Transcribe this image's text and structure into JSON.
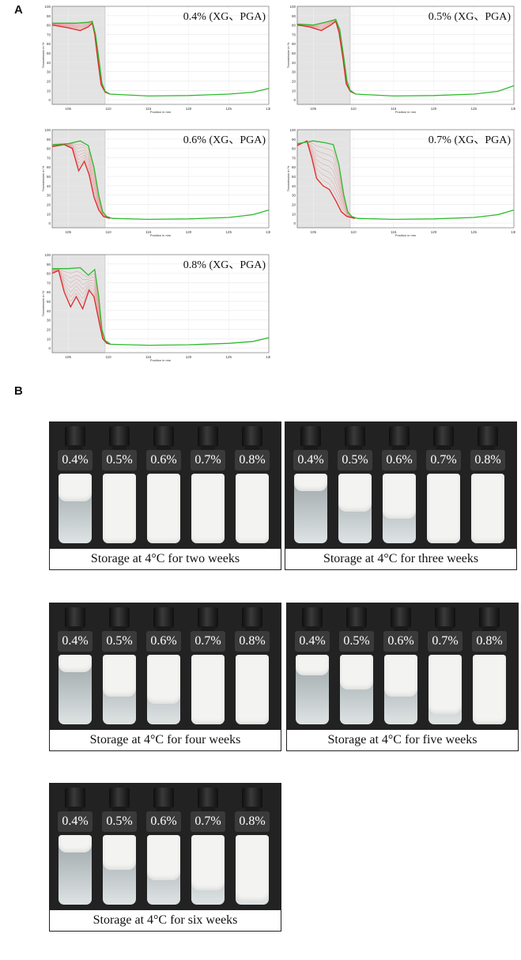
{
  "panel_a_label": "A",
  "panel_b_label": "B",
  "chart_data": [
    {
      "type": "line",
      "title": "0.4% (XG、PGA)",
      "xlabel": "Position in mm",
      "ylabel": "Transmission in %",
      "x_ticks": [
        "105",
        "110",
        "115",
        "120",
        "125",
        "130"
      ],
      "y_ticks": [
        "0",
        "10",
        "20",
        "30",
        "40",
        "50",
        "60",
        "70",
        "80",
        "90",
        "100"
      ],
      "xlim": [
        103,
        130
      ],
      "ylim": [
        -5,
        100
      ],
      "shaded_region": [
        103,
        109.6
      ],
      "series": [
        {
          "color": "#2dbb2d",
          "points": [
            [
              103,
              82
            ],
            [
              106,
              82
            ],
            [
              107.5,
              83
            ],
            [
              108,
              84
            ],
            [
              108.4,
              70
            ],
            [
              108.8,
              45
            ],
            [
              109.2,
              18
            ],
            [
              109.6,
              9
            ],
            [
              110.2,
              6
            ],
            [
              115,
              4
            ],
            [
              120,
              4.5
            ],
            [
              125,
              6
            ],
            [
              128,
              8
            ],
            [
              130,
              12
            ]
          ]
        },
        {
          "color": "#dd2a2a",
          "points": [
            [
              103,
              80
            ],
            [
              105,
              77
            ],
            [
              106.5,
              74
            ],
            [
              107.5,
              78
            ],
            [
              108,
              82
            ],
            [
              108.3,
              70
            ],
            [
              108.7,
              42
            ],
            [
              109.1,
              16
            ],
            [
              109.6,
              8
            ],
            [
              110.2,
              6
            ]
          ]
        }
      ]
    },
    {
      "type": "line",
      "title": "0.5% (XG、PGA)",
      "xlabel": "Position in mm",
      "ylabel": "Transmission in %",
      "x_ticks": [
        "105",
        "110",
        "115",
        "120",
        "125",
        "130"
      ],
      "y_ticks": [
        "0",
        "10",
        "20",
        "30",
        "40",
        "50",
        "60",
        "70",
        "80",
        "90",
        "100"
      ],
      "xlim": [
        103,
        130
      ],
      "ylim": [
        -5,
        100
      ],
      "shaded_region": [
        103,
        109.6
      ],
      "series": [
        {
          "color": "#2dbb2d",
          "points": [
            [
              103,
              81
            ],
            [
              105,
              80
            ],
            [
              106.5,
              83
            ],
            [
              107.8,
              86
            ],
            [
              108.3,
              75
            ],
            [
              108.8,
              45
            ],
            [
              109.2,
              20
            ],
            [
              109.6,
              10
            ],
            [
              110.3,
              6
            ],
            [
              115,
              4
            ],
            [
              120,
              4.5
            ],
            [
              125,
              6
            ],
            [
              128,
              9
            ],
            [
              130,
              15
            ]
          ]
        },
        {
          "color": "#dd2a2a",
          "points": [
            [
              103,
              80
            ],
            [
              104.5,
              78
            ],
            [
              106,
              74
            ],
            [
              107.2,
              80
            ],
            [
              107.8,
              84
            ],
            [
              108.2,
              72
            ],
            [
              108.7,
              44
            ],
            [
              109.1,
              17
            ],
            [
              109.6,
              9
            ],
            [
              110.3,
              6
            ]
          ]
        }
      ]
    },
    {
      "type": "line",
      "title": "0.6% (XG、PGA)",
      "xlabel": "Position in mm",
      "ylabel": "Transmission in %",
      "x_ticks": [
        "105",
        "110",
        "115",
        "120",
        "125",
        "130"
      ],
      "y_ticks": [
        "0",
        "10",
        "20",
        "30",
        "40",
        "50",
        "60",
        "70",
        "80",
        "90",
        "100"
      ],
      "xlim": [
        103,
        130
      ],
      "ylim": [
        -5,
        100
      ],
      "shaded_region": [
        103,
        109.6
      ],
      "series": [
        {
          "color": "#2dbb2d",
          "points": [
            [
              103,
              84
            ],
            [
              105,
              85
            ],
            [
              106.5,
              88
            ],
            [
              107.5,
              83
            ],
            [
              108.2,
              60
            ],
            [
              108.8,
              30
            ],
            [
              109.3,
              12
            ],
            [
              109.8,
              7
            ],
            [
              110.5,
              5
            ],
            [
              115,
              4
            ],
            [
              120,
              4.5
            ],
            [
              125,
              6
            ],
            [
              128,
              9
            ],
            [
              130,
              14
            ]
          ]
        },
        {
          "color": "#dd2a2a",
          "points": [
            [
              103,
              82
            ],
            [
              104.5,
              84
            ],
            [
              105.5,
              80
            ],
            [
              106.3,
              56
            ],
            [
              107,
              66
            ],
            [
              107.6,
              52
            ],
            [
              108.2,
              28
            ],
            [
              108.8,
              14
            ],
            [
              109.4,
              7
            ],
            [
              110.2,
              5
            ]
          ]
        }
      ]
    },
    {
      "type": "line",
      "title": "0.7% (XG、PGA)",
      "xlabel": "Position in mm",
      "ylabel": "Transmission in %",
      "x_ticks": [
        "105",
        "110",
        "115",
        "120",
        "125",
        "130"
      ],
      "y_ticks": [
        "0",
        "10",
        "20",
        "30",
        "40",
        "50",
        "60",
        "70",
        "80",
        "90",
        "100"
      ],
      "xlim": [
        103,
        130
      ],
      "ylim": [
        -5,
        100
      ],
      "shaded_region": [
        103,
        109.6
      ],
      "series": [
        {
          "color": "#2dbb2d",
          "points": [
            [
              103,
              85
            ],
            [
              105,
              88
            ],
            [
              106.5,
              86
            ],
            [
              107.5,
              84
            ],
            [
              108.2,
              62
            ],
            [
              108.8,
              30
            ],
            [
              109.3,
              12
            ],
            [
              109.8,
              7
            ],
            [
              110.5,
              5
            ],
            [
              115,
              4
            ],
            [
              120,
              4.5
            ],
            [
              125,
              6
            ],
            [
              128,
              9
            ],
            [
              130,
              14
            ]
          ]
        },
        {
          "color": "#dd2a2a",
          "points": [
            [
              103,
              83
            ],
            [
              104.2,
              88
            ],
            [
              104.8,
              70
            ],
            [
              105.4,
              48
            ],
            [
              106.2,
              40
            ],
            [
              107,
              36
            ],
            [
              107.8,
              24
            ],
            [
              108.5,
              12
            ],
            [
              109.2,
              7
            ],
            [
              110.2,
              5
            ]
          ]
        }
      ]
    },
    {
      "type": "line",
      "title": "0.8% (XG、PGA)",
      "xlabel": "Position in mm",
      "ylabel": "Transmission in %",
      "x_ticks": [
        "105",
        "110",
        "115",
        "120",
        "125",
        "130"
      ],
      "y_ticks": [
        "0",
        "10",
        "20",
        "30",
        "40",
        "50",
        "60",
        "70",
        "80",
        "90",
        "100"
      ],
      "xlim": [
        103,
        130
      ],
      "ylim": [
        -5,
        100
      ],
      "shaded_region": [
        103,
        109.6
      ],
      "series": [
        {
          "color": "#2dbb2d",
          "points": [
            [
              103,
              85
            ],
            [
              105,
              85
            ],
            [
              106.5,
              86
            ],
            [
              107.5,
              78
            ],
            [
              108.3,
              84
            ],
            [
              108.8,
              55
            ],
            [
              109.2,
              20
            ],
            [
              109.6,
              8
            ],
            [
              110.3,
              4
            ],
            [
              115,
              3
            ],
            [
              120,
              3.5
            ],
            [
              125,
              5
            ],
            [
              128,
              7
            ],
            [
              130,
              11
            ]
          ]
        },
        {
          "color": "#dd2a2a",
          "points": [
            [
              103,
              80
            ],
            [
              103.8,
              83
            ],
            [
              104.5,
              60
            ],
            [
              105.3,
              44
            ],
            [
              106,
              55
            ],
            [
              106.8,
              42
            ],
            [
              107.6,
              62
            ],
            [
              108.2,
              55
            ],
            [
              108.8,
              30
            ],
            [
              109.3,
              10
            ],
            [
              109.8,
              5
            ],
            [
              110.3,
              4
            ]
          ]
        }
      ]
    }
  ],
  "photos": [
    {
      "caption": "Storage at 4°C for two weeks",
      "labels": [
        "0.4%",
        "0.5%",
        "0.6%",
        "0.7%",
        "0.8%"
      ],
      "cream_fraction": [
        0.4,
        1.0,
        1.0,
        1.0,
        1.0
      ]
    },
    {
      "caption": "Storage at 4°C for three weeks",
      "labels": [
        "0.4%",
        "0.5%",
        "0.6%",
        "0.7%",
        "0.8%"
      ],
      "cream_fraction": [
        0.25,
        0.55,
        0.65,
        1.0,
        1.0
      ]
    },
    {
      "caption": "Storage at 4°C for four weeks",
      "labels": [
        "0.4%",
        "0.5%",
        "0.6%",
        "0.7%",
        "0.8%"
      ],
      "cream_fraction": [
        0.25,
        0.6,
        0.7,
        1.0,
        1.0
      ]
    },
    {
      "caption": "Storage at 4°C for five weeks",
      "labels": [
        "0.4%",
        "0.5%",
        "0.6%",
        "0.7%",
        "0.8%"
      ],
      "cream_fraction": [
        0.3,
        0.5,
        0.6,
        0.85,
        1.0
      ]
    },
    {
      "caption": "Storage at 4°C for six weeks",
      "labels": [
        "0.4%",
        "0.5%",
        "0.6%",
        "0.7%",
        "0.8%"
      ],
      "cream_fraction": [
        0.25,
        0.5,
        0.65,
        0.8,
        0.95
      ]
    }
  ]
}
